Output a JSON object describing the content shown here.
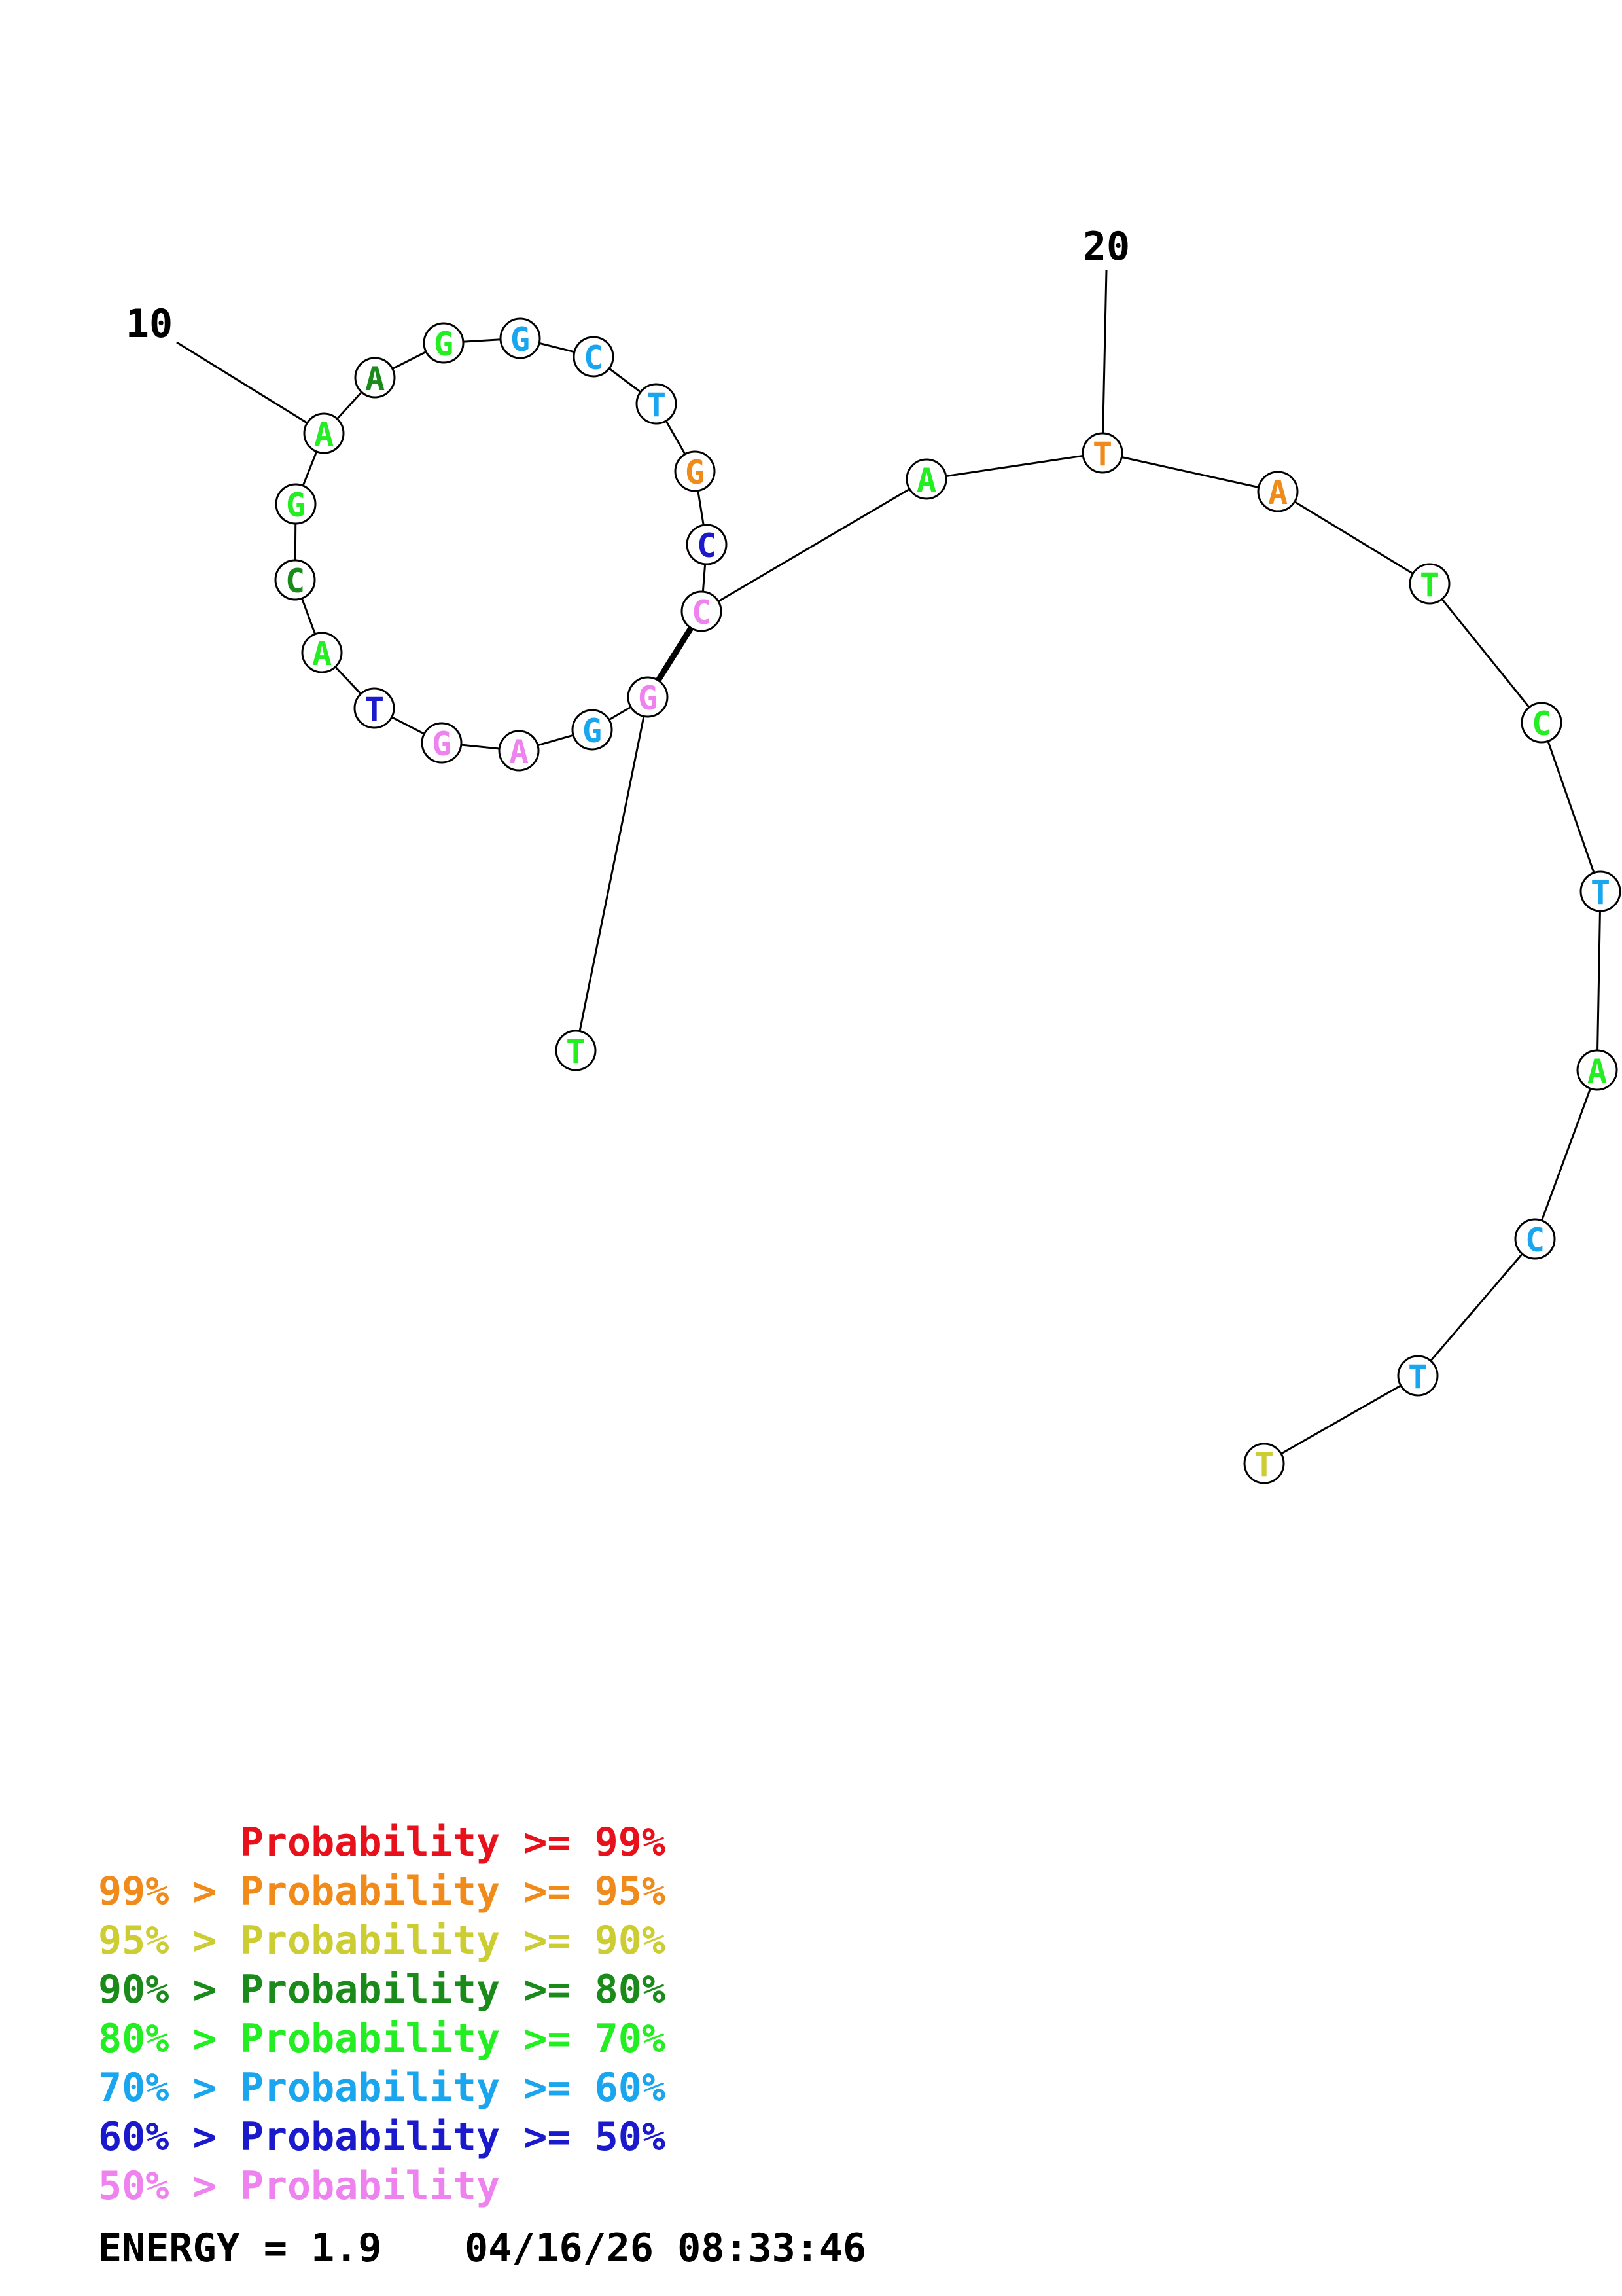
{
  "colors": {
    "p99": "#e8101a",
    "p95": "#f08a1a",
    "p90": "#cccc33",
    "p80": "#1a8a1a",
    "p70": "#22ee22",
    "p60": "#1aa6ee",
    "p50": "#1a1acc",
    "plow": "#ee82ee",
    "ink": "#000000"
  },
  "nucleotides": [
    {
      "index": 1,
      "base": "T",
      "color": "p70"
    },
    {
      "index": 2,
      "base": "G",
      "color": "plow"
    },
    {
      "index": 3,
      "base": "G",
      "color": "p60"
    },
    {
      "index": 4,
      "base": "A",
      "color": "plow"
    },
    {
      "index": 5,
      "base": "G",
      "color": "plow"
    },
    {
      "index": 6,
      "base": "T",
      "color": "p50"
    },
    {
      "index": 7,
      "base": "A",
      "color": "p70"
    },
    {
      "index": 8,
      "base": "C",
      "color": "p80"
    },
    {
      "index": 9,
      "base": "G",
      "color": "p70"
    },
    {
      "index": 10,
      "base": "A",
      "color": "p70"
    },
    {
      "index": 11,
      "base": "A",
      "color": "p80"
    },
    {
      "index": 12,
      "base": "G",
      "color": "p70"
    },
    {
      "index": 13,
      "base": "G",
      "color": "p60"
    },
    {
      "index": 14,
      "base": "C",
      "color": "p60"
    },
    {
      "index": 15,
      "base": "T",
      "color": "p60"
    },
    {
      "index": 16,
      "base": "G",
      "color": "p95"
    },
    {
      "index": 17,
      "base": "C",
      "color": "p50"
    },
    {
      "index": 18,
      "base": "C",
      "color": "plow"
    },
    {
      "index": 19,
      "base": "A",
      "color": "p70"
    },
    {
      "index": 20,
      "base": "T",
      "color": "p95"
    },
    {
      "index": 21,
      "base": "A",
      "color": "p95"
    },
    {
      "index": 22,
      "base": "T",
      "color": "p70"
    },
    {
      "index": 23,
      "base": "C",
      "color": "p70"
    },
    {
      "index": 24,
      "base": "T",
      "color": "p60"
    },
    {
      "index": 25,
      "base": "A",
      "color": "p70"
    },
    {
      "index": 26,
      "base": "C",
      "color": "p60"
    },
    {
      "index": 27,
      "base": "T",
      "color": "p60"
    },
    {
      "index": 28,
      "base": "T",
      "color": "p90"
    }
  ],
  "base_pairs": [
    {
      "i": 2,
      "j": 18
    }
  ],
  "index_labels": [
    {
      "index": 10,
      "text": "10"
    },
    {
      "index": 20,
      "text": "20"
    }
  ],
  "legend": [
    {
      "prefix": "",
      "label": "Probability >= 99%",
      "color": "p99"
    },
    {
      "prefix": "99% > ",
      "label": "Probability >= 95%",
      "color": "p95"
    },
    {
      "prefix": "95% > ",
      "label": "Probability >= 90%",
      "color": "p90"
    },
    {
      "prefix": "90% > ",
      "label": "Probability >= 80%",
      "color": "p80"
    },
    {
      "prefix": "80% > ",
      "label": "Probability >= 70%",
      "color": "p70"
    },
    {
      "prefix": "70% > ",
      "label": "Probability >= 60%",
      "color": "p60"
    },
    {
      "prefix": "60% > ",
      "label": "Probability >= 50%",
      "color": "p50"
    },
    {
      "prefix": "50% > ",
      "label": "Probability",
      "color": "plow"
    }
  ],
  "footer": {
    "energy": "ENERGY = 1.9",
    "timestamp": "04/16/26 08:33:46"
  }
}
